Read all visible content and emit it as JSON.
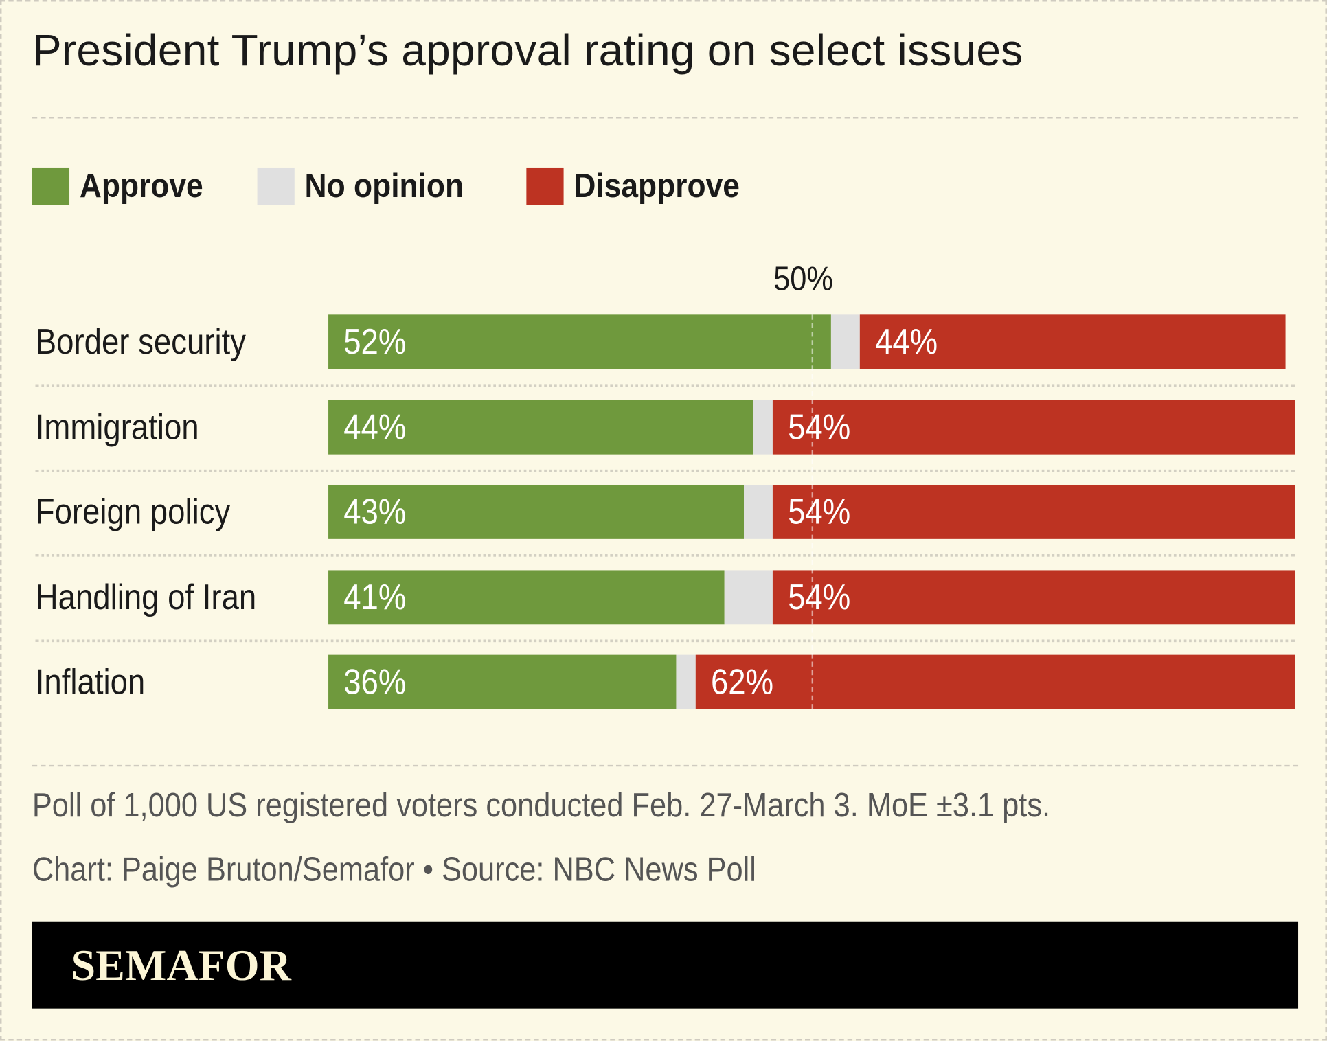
{
  "title": "President Trump’s approval rating on select issues",
  "legend": [
    {
      "label": "Approve",
      "color": "#6f993d"
    },
    {
      "label": "No opinion",
      "color": "#e0e0e0"
    },
    {
      "label": "Disapprove",
      "color": "#bd3322"
    }
  ],
  "chart_data": {
    "type": "bar",
    "stacked": true,
    "orientation": "horizontal",
    "categories": [
      "Border security",
      "Immigration",
      "Foreign policy",
      "Handling of Iran",
      "Inflation"
    ],
    "series": [
      {
        "name": "Approve",
        "values": [
          52,
          44,
          43,
          41,
          36
        ],
        "labels": [
          "52%",
          "44%",
          "43%",
          "41%",
          "36%"
        ],
        "color": "#6f993d"
      },
      {
        "name": "No opinion",
        "values": [
          3,
          2,
          3,
          5,
          2
        ],
        "color": "#e0e0e0"
      },
      {
        "name": "Disapprove",
        "values": [
          44,
          54,
          54,
          54,
          62
        ],
        "labels": [
          "44%",
          "54%",
          "54%",
          "54%",
          "62%"
        ],
        "color": "#bd3322"
      }
    ],
    "xlim": [
      0,
      100
    ],
    "reference_line": {
      "value": 50,
      "label": "50%"
    },
    "legend_position": "top-left"
  },
  "notes": {
    "methodology": "Poll of 1,000 US registered voters conducted Feb. 27-March 3. MoE ±3.1 pts.",
    "credit": "Chart: Paige Bruton/Semafor • Source: NBC News Poll"
  },
  "brand": "SEMAFOR"
}
